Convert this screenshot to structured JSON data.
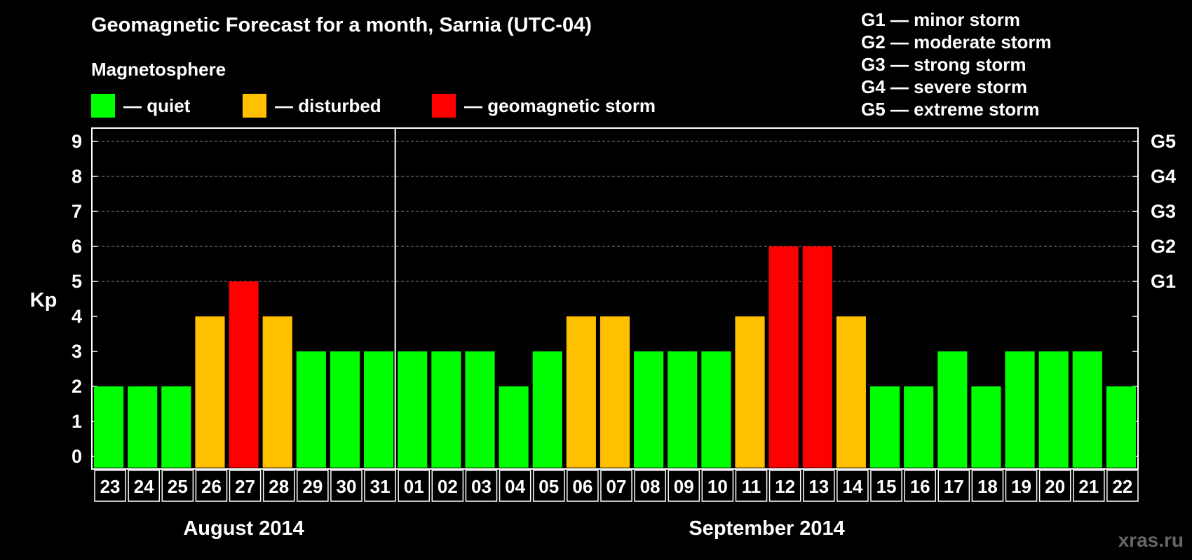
{
  "title": "Geomagnetic Forecast for a month, Sarnia (UTC-04)",
  "subtitle": "Magnetosphere",
  "legend": {
    "quiet": {
      "label": "— quiet",
      "color": "#00ff00"
    },
    "disturbed": {
      "label": "— disturbed",
      "color": "#ffc000"
    },
    "storm": {
      "label": "— geomagnetic storm",
      "color": "#ff0000"
    }
  },
  "g_scale": [
    "G1 — minor storm",
    "G2 — moderate storm",
    "G3 — strong storm",
    "G4 — severe storm",
    "G5 — extreme storm"
  ],
  "watermark": "xras.ru",
  "chart_data": {
    "type": "bar",
    "title": "Geomagnetic Forecast for a month, Sarnia (UTC-04)",
    "ylabel": "Kp",
    "xlabel": "",
    "ylim": [
      0,
      9
    ],
    "yticks": [
      "0",
      "1",
      "2",
      "3",
      "4",
      "5",
      "6",
      "7",
      "8",
      "9"
    ],
    "right_axis_labels": [
      {
        "kp": 5,
        "label": "G1"
      },
      {
        "kp": 6,
        "label": "G2"
      },
      {
        "kp": 7,
        "label": "G3"
      },
      {
        "kp": 8,
        "label": "G4"
      },
      {
        "kp": 9,
        "label": "G5"
      }
    ],
    "categories": [
      "23",
      "24",
      "25",
      "26",
      "27",
      "28",
      "29",
      "30",
      "31",
      "01",
      "02",
      "03",
      "04",
      "05",
      "06",
      "07",
      "08",
      "09",
      "10",
      "11",
      "12",
      "13",
      "14",
      "15",
      "16",
      "17",
      "18",
      "19",
      "20",
      "21",
      "22"
    ],
    "values": [
      2,
      2,
      2,
      4,
      5,
      4,
      3,
      3,
      3,
      3,
      3,
      3,
      2,
      3,
      4,
      4,
      3,
      3,
      3,
      4,
      6,
      6,
      4,
      2,
      2,
      3,
      2,
      3,
      3,
      3,
      2
    ],
    "status": [
      "quiet",
      "quiet",
      "quiet",
      "disturbed",
      "storm",
      "disturbed",
      "quiet",
      "quiet",
      "quiet",
      "quiet",
      "quiet",
      "quiet",
      "quiet",
      "quiet",
      "disturbed",
      "disturbed",
      "quiet",
      "quiet",
      "quiet",
      "disturbed",
      "storm",
      "storm",
      "disturbed",
      "quiet",
      "quiet",
      "quiet",
      "quiet",
      "quiet",
      "quiet",
      "quiet",
      "quiet"
    ],
    "months": [
      {
        "label": "August 2014",
        "start": 0,
        "end": 8
      },
      {
        "label": "September 2014",
        "start": 9,
        "end": 30
      }
    ],
    "grid": "dashed-horizontal"
  }
}
